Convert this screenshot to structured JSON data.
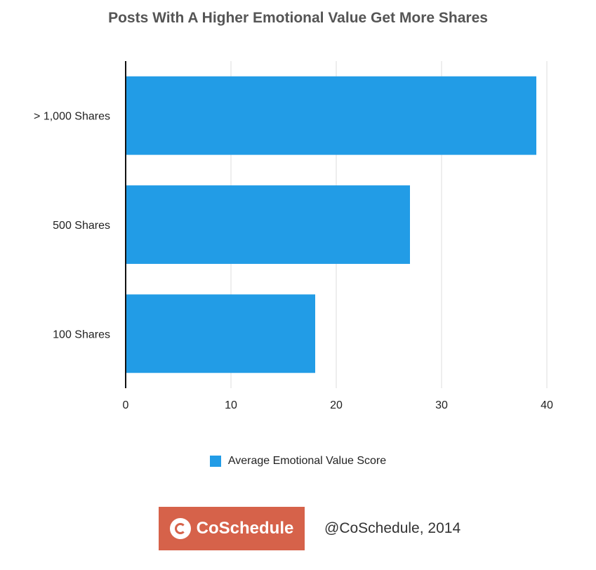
{
  "chart_data": {
    "type": "bar",
    "orientation": "horizontal",
    "title": "Posts With A Higher Emotional Value Get More Shares",
    "categories": [
      "> 1,000 Shares",
      "500 Shares",
      "100 Shares"
    ],
    "series": [
      {
        "name": "Average Emotional Value Score",
        "values": [
          39,
          27,
          18
        ],
        "color": "#229ce6"
      }
    ],
    "xlim": [
      0,
      40
    ],
    "xticks": [
      "0",
      "10",
      "20",
      "30",
      "40"
    ],
    "grid": "vertical",
    "legend": "bottom-center"
  },
  "footer": {
    "brand": "CoSchedule",
    "brand_color": "#d6624a",
    "credit": "@CoSchedule, 2014"
  }
}
